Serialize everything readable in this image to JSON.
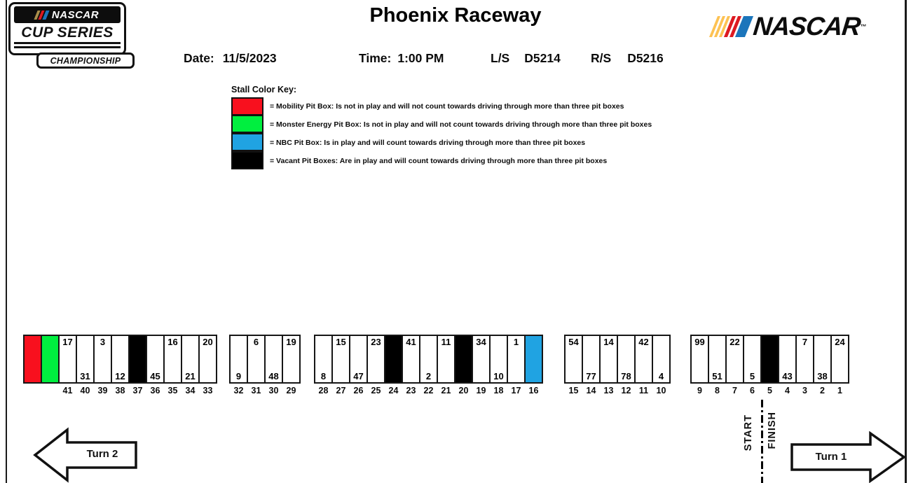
{
  "page": {
    "title": "Phoenix Raceway"
  },
  "logos": {
    "cup_series": {
      "top": "NASCAR",
      "middle": "CUP SERIES",
      "bottom": "CHAMPIONSHIP"
    },
    "nascar_wordmark": {
      "text": "NASCAR",
      "tm": "™"
    },
    "stripe_colors": {
      "gold": "#A98E4A",
      "yellow": "#FDC253",
      "red": "#DD1A21",
      "blue": "#1B75BB"
    }
  },
  "info": {
    "date_label": "Date:",
    "date_value": "11/5/2023",
    "time_label": "Time:",
    "time_value": "1:00 PM",
    "left_side_label": "L/S",
    "left_side_value": "D5214",
    "right_side_label": "R/S",
    "right_side_value": "D5216"
  },
  "color_key": {
    "title": "Stall Color Key:",
    "entries": [
      {
        "name": "mobility",
        "color": "#F8101E",
        "text": "= Mobility Pit Box:   Is not in play and will not count towards driving through more than three pit boxes"
      },
      {
        "name": "monster-energy",
        "color": "#00EF3F",
        "text": "= Monster Energy Pit Box:  Is not in play and will not count towards driving through more than three pit boxes"
      },
      {
        "name": "nbc",
        "color": "#20A3E2",
        "text": "= NBC Pit Box:  Is in play and will count towards driving through more than three pit boxes"
      },
      {
        "name": "vacant",
        "color": "#000000",
        "text": "= Vacant Pit Boxes:  Are in play and will count towards driving through more than three pit boxes"
      }
    ]
  },
  "pit_lane": {
    "box_colors": {
      "red": "#F8101E",
      "green": "#00EF3F",
      "blue": "#20A3E2",
      "vacant": "#000000"
    },
    "groups": [
      {
        "stalls": [
          {
            "type": "red"
          },
          {
            "type": "green"
          },
          {
            "stall": "41",
            "car": "17",
            "car_pos": "top"
          },
          {
            "stall": "40",
            "car": "31",
            "car_pos": "bottom"
          },
          {
            "stall": "39",
            "car": "3",
            "car_pos": "top"
          },
          {
            "stall": "38",
            "car": "12",
            "car_pos": "bottom"
          },
          {
            "stall": "37",
            "type": "vacant"
          },
          {
            "stall": "36",
            "car": "45",
            "car_pos": "bottom"
          },
          {
            "stall": "35",
            "car": "16",
            "car_pos": "top"
          },
          {
            "stall": "34",
            "car": "21",
            "car_pos": "bottom"
          },
          {
            "stall": "33",
            "car": "20",
            "car_pos": "top"
          }
        ]
      },
      {
        "stalls": [
          {
            "stall": "32",
            "car": "9",
            "car_pos": "bottom"
          },
          {
            "stall": "31",
            "car": "6",
            "car_pos": "top"
          },
          {
            "stall": "30",
            "car": "48",
            "car_pos": "bottom"
          },
          {
            "stall": "29",
            "car": "19",
            "car_pos": "top"
          }
        ]
      },
      {
        "stalls": [
          {
            "stall": "28",
            "car": "8",
            "car_pos": "bottom"
          },
          {
            "stall": "27",
            "car": "15",
            "car_pos": "top"
          },
          {
            "stall": "26",
            "car": "47",
            "car_pos": "bottom"
          },
          {
            "stall": "25",
            "car": "23",
            "car_pos": "top"
          },
          {
            "stall": "24",
            "type": "vacant"
          },
          {
            "stall": "23",
            "car": "41",
            "car_pos": "top"
          },
          {
            "stall": "22",
            "car": "2",
            "car_pos": "bottom"
          },
          {
            "stall": "21",
            "car": "11",
            "car_pos": "top"
          },
          {
            "stall": "20",
            "type": "vacant"
          },
          {
            "stall": "19",
            "car": "34",
            "car_pos": "top"
          },
          {
            "stall": "18",
            "car": "10",
            "car_pos": "bottom"
          },
          {
            "stall": "17",
            "car": "1",
            "car_pos": "top"
          },
          {
            "stall": "16",
            "type": "blue"
          }
        ]
      },
      {
        "stalls": [
          {
            "stall": "15",
            "car": "54",
            "car_pos": "top"
          },
          {
            "stall": "14",
            "car": "77",
            "car_pos": "bottom"
          },
          {
            "stall": "13",
            "car": "14",
            "car_pos": "top"
          },
          {
            "stall": "12",
            "car": "78",
            "car_pos": "bottom"
          },
          {
            "stall": "11",
            "car": "42",
            "car_pos": "top"
          },
          {
            "stall": "10",
            "car": "4",
            "car_pos": "bottom"
          }
        ]
      },
      {
        "stalls": [
          {
            "stall": "9",
            "car": "99",
            "car_pos": "top"
          },
          {
            "stall": "8",
            "car": "51",
            "car_pos": "bottom"
          },
          {
            "stall": "7",
            "car": "22",
            "car_pos": "top"
          },
          {
            "stall": "6",
            "car": "5",
            "car_pos": "bottom"
          },
          {
            "stall": "5",
            "type": "vacant"
          },
          {
            "stall": "4",
            "car": "43",
            "car_pos": "bottom"
          },
          {
            "stall": "3",
            "car": "7",
            "car_pos": "top"
          },
          {
            "stall": "2",
            "car": "38",
            "car_pos": "bottom"
          },
          {
            "stall": "1",
            "car": "24",
            "car_pos": "top"
          }
        ]
      }
    ]
  },
  "track": {
    "turn_left_label": "Turn 2",
    "turn_right_label": "Turn 1",
    "start_label": "START",
    "finish_label": "FINISH"
  }
}
